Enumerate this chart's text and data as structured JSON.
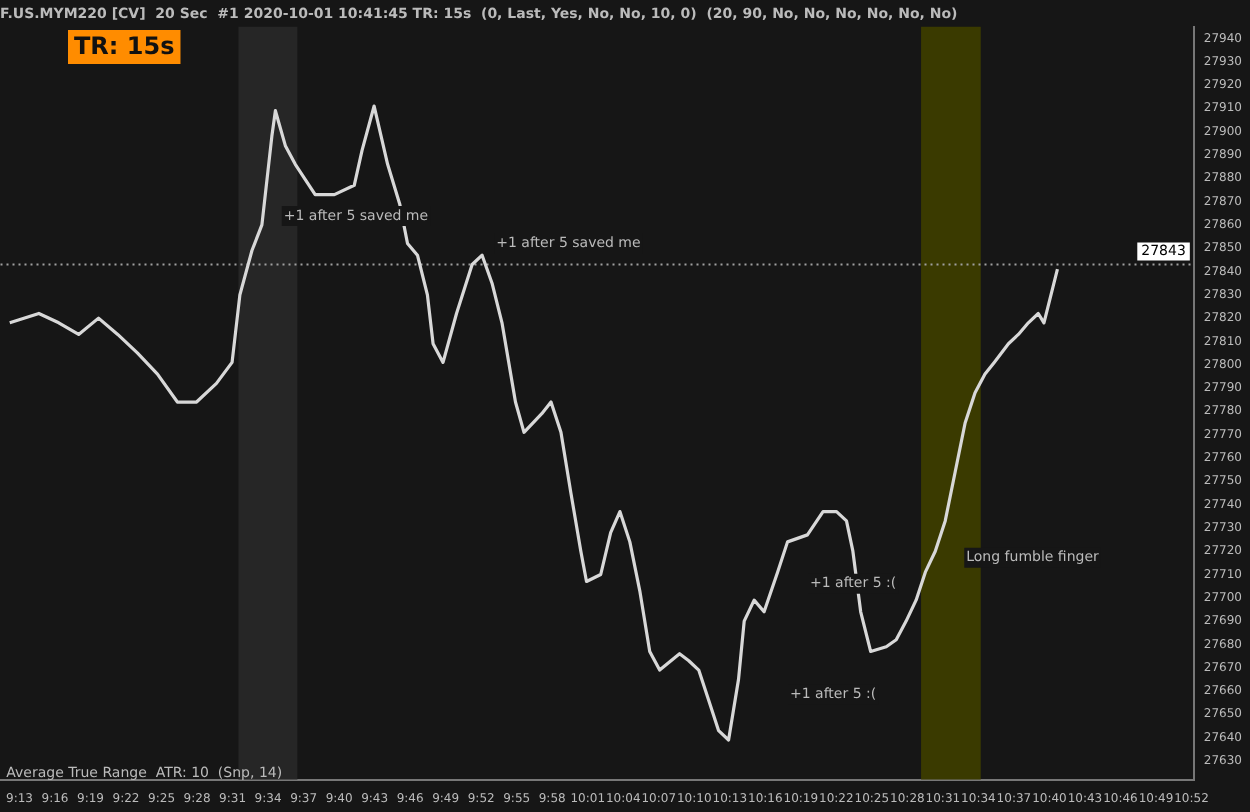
{
  "chart_data": {
    "type": "line",
    "title": "F.US.MYM220 [CV]  20 Sec  #1 2020-10-01 10:41:45 TR: 15s  (0, Last, Yes, No, No, 10, 0)  (20, 90, No, No, No, No, No, No)",
    "series": [
      {
        "color": "#d8d8d8",
        "x": [
          9.203,
          9.244,
          9.272,
          9.3,
          9.328,
          9.355,
          9.383,
          9.411,
          9.439,
          9.466,
          9.494,
          9.516,
          9.527,
          9.544,
          9.558,
          9.572,
          9.577,
          9.591,
          9.605,
          9.633,
          9.66,
          9.688,
          9.699,
          9.716,
          9.735,
          9.752,
          9.763,
          9.777,
          9.791,
          9.799,
          9.813,
          9.832,
          9.854,
          9.868,
          9.882,
          9.896,
          9.915,
          9.927,
          9.952,
          9.965,
          9.979,
          9.993,
          10.007,
          10.015,
          10.035,
          10.049,
          10.062,
          10.076,
          10.09,
          10.104,
          10.118,
          10.146,
          10.159,
          10.173,
          10.187,
          10.201,
          10.215,
          10.229,
          10.237,
          10.251,
          10.265,
          10.284,
          10.298,
          10.326,
          10.348,
          10.367,
          10.381,
          10.39,
          10.401,
          10.415,
          10.437,
          10.451,
          10.465,
          10.479,
          10.492,
          10.506,
          10.52,
          10.534,
          10.548,
          10.562,
          10.576,
          10.589,
          10.609,
          10.623,
          10.637,
          10.651,
          10.659,
          10.678
        ],
        "values": [
          27818,
          27822,
          27818,
          27813,
          27820,
          27813,
          27805,
          27796,
          27784,
          27784,
          27792,
          27801,
          27830,
          27849,
          27860,
          27898,
          27909,
          27894,
          27886,
          27873,
          27873,
          27877,
          27892,
          27911,
          27886,
          27869,
          27852,
          27847,
          27830,
          27809,
          27801,
          27822,
          27843,
          27847,
          27835,
          27818,
          27784,
          27771,
          27779,
          27784,
          27771,
          27745,
          27720,
          27707,
          27710,
          27728,
          27737,
          27724,
          27703,
          27677,
          27669,
          27676,
          27673,
          27669,
          27656,
          27643,
          27639,
          27665,
          27690,
          27699,
          27694,
          27711,
          27724,
          27727,
          27737,
          27737,
          27733,
          27720,
          27694,
          27677,
          27679,
          27682,
          27690,
          27699,
          27711,
          27720,
          27733,
          27754,
          27775,
          27788,
          27796,
          27801,
          27809,
          27813,
          27818,
          27822,
          27818,
          27841
        ]
      }
    ],
    "xlim": [
      9.19,
      10.87
    ],
    "xticks": [
      {
        "value": 9.2167,
        "label": "9:13"
      },
      {
        "value": 9.2667,
        "label": "9:16"
      },
      {
        "value": 9.3167,
        "label": "9:19"
      },
      {
        "value": 9.3667,
        "label": "9:22"
      },
      {
        "value": 9.4167,
        "label": "9:25"
      },
      {
        "value": 9.4667,
        "label": "9:28"
      },
      {
        "value": 9.5167,
        "label": "9:31"
      },
      {
        "value": 9.5667,
        "label": "9:34"
      },
      {
        "value": 9.6167,
        "label": "9:37"
      },
      {
        "value": 9.6667,
        "label": "9:40"
      },
      {
        "value": 9.7167,
        "label": "9:43"
      },
      {
        "value": 9.7667,
        "label": "9:46"
      },
      {
        "value": 9.8167,
        "label": "9:49"
      },
      {
        "value": 9.8667,
        "label": "9:52"
      },
      {
        "value": 9.9167,
        "label": "9:55"
      },
      {
        "value": 9.9667,
        "label": "9:58"
      },
      {
        "value": 10.0167,
        "label": "10:01"
      },
      {
        "value": 10.0667,
        "label": "10:04"
      },
      {
        "value": 10.1167,
        "label": "10:07"
      },
      {
        "value": 10.1667,
        "label": "10:10"
      },
      {
        "value": 10.2167,
        "label": "10:13"
      },
      {
        "value": 10.2667,
        "label": "10:16"
      },
      {
        "value": 10.3167,
        "label": "10:19"
      },
      {
        "value": 10.3667,
        "label": "10:22"
      },
      {
        "value": 10.4167,
        "label": "10:25"
      },
      {
        "value": 10.4667,
        "label": "10:28"
      },
      {
        "value": 10.5167,
        "label": "10:31"
      },
      {
        "value": 10.5667,
        "label": "10:34"
      },
      {
        "value": 10.6167,
        "label": "10:37"
      },
      {
        "value": 10.6667,
        "label": "10:40"
      },
      {
        "value": 10.7167,
        "label": "10:43"
      },
      {
        "value": 10.7667,
        "label": "10:46"
      },
      {
        "value": 10.8167,
        "label": "10:49"
      },
      {
        "value": 10.8667,
        "label": "10:52"
      }
    ],
    "ylim": [
      27622,
      27945
    ],
    "yticks": [
      27630,
      27640,
      27650,
      27660,
      27670,
      27680,
      27690,
      27700,
      27710,
      27720,
      27730,
      27740,
      27750,
      27760,
      27770,
      27780,
      27790,
      27800,
      27810,
      27820,
      27830,
      27840,
      27850,
      27860,
      27870,
      27880,
      27890,
      27900,
      27910,
      27920,
      27930,
      27940
    ],
    "ref_lines": [
      {
        "axis": "y",
        "value": 27843,
        "label": "27843",
        "color": "#a0a0a0",
        "line_style": "dotted"
      }
    ],
    "bands": [
      {
        "axis": "x",
        "from": 9.525,
        "to": 9.608,
        "color": "#262626"
      },
      {
        "axis": "x",
        "from": 10.486,
        "to": 10.57,
        "color": "#3a3a00"
      }
    ],
    "annotations": [
      "TR: 15s",
      "Average True Range  ATR: 10  (Snp, 14)",
      "+1 after 5 saved me",
      "+1 after 5 saved me",
      "+1 after 5 :(",
      "+1 after 5 :(",
      "Long fumble finger"
    ],
    "grid": false,
    "legend": false,
    "marker": "none",
    "line_style": "solid"
  }
}
